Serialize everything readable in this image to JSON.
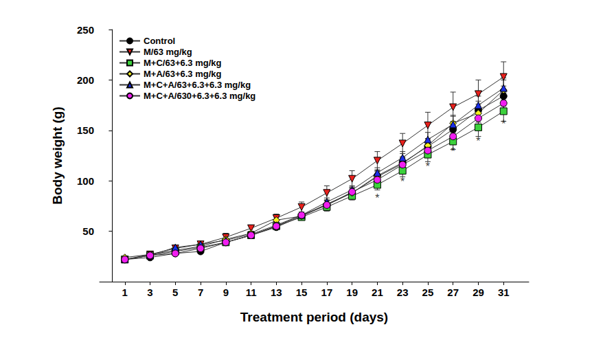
{
  "chart_data": {
    "type": "line",
    "x_label": "Treatment period (days)",
    "y_label": "Body weight (g)",
    "x": [
      1,
      3,
      5,
      7,
      9,
      11,
      13,
      15,
      17,
      19,
      21,
      23,
      25,
      27,
      29,
      31
    ],
    "xlim": [
      -1,
      33
    ],
    "xticks": [
      1,
      3,
      5,
      7,
      9,
      11,
      13,
      15,
      17,
      19,
      21,
      23,
      25,
      27,
      29,
      31
    ],
    "ylim": [
      0,
      250
    ],
    "yticks": [
      50,
      100,
      150,
      200,
      250
    ],
    "grid": false,
    "legend": "upper left",
    "series": [
      {
        "name": "Control",
        "color": "#000000",
        "marker": "circle",
        "values": [
          22,
          24,
          28,
          30,
          39,
          46,
          54,
          65,
          76,
          88,
          105,
          118,
          134,
          151,
          170,
          184
        ],
        "errors": [
          1,
          1,
          1,
          1,
          2,
          2,
          2,
          3,
          4,
          4,
          5,
          6,
          7,
          8,
          9,
          10
        ]
      },
      {
        "name": "M/63 mg/kg",
        "color": "#e8201c",
        "marker": "triangle-down",
        "values": [
          22,
          27,
          33,
          37,
          44,
          53,
          63,
          74,
          88,
          102,
          120,
          137,
          155,
          173,
          186,
          203
        ],
        "errors": [
          1,
          1,
          2,
          2,
          3,
          3,
          4,
          5,
          7,
          8,
          9,
          10,
          13,
          15,
          14,
          15
        ]
      },
      {
        "name": "M+C/63+6.3 mg/kg",
        "color": "#3cd13c",
        "marker": "square",
        "values": [
          22,
          26,
          30,
          34,
          39,
          46,
          55,
          64,
          74,
          85,
          96,
          110,
          126,
          139,
          153,
          169
        ],
        "errors": [
          1,
          1,
          1,
          1,
          2,
          2,
          2,
          3,
          4,
          4,
          5,
          6,
          7,
          8,
          9,
          10
        ]
      },
      {
        "name": "M+A/63+6.3 mg/kg",
        "color": "#f5f01e",
        "marker": "diamond",
        "values": [
          24,
          27,
          31,
          35,
          42,
          48,
          61,
          65,
          77,
          88,
          104,
          117,
          135,
          157,
          167,
          190
        ],
        "errors": [
          1,
          1,
          2,
          2,
          6,
          2,
          3,
          3,
          4,
          5,
          5,
          6,
          7,
          8,
          9,
          10
        ]
      },
      {
        "name": "M+C+A/63+6.3+6.3 mg/kg",
        "color": "#1a2ee8",
        "marker": "triangle",
        "values": [
          22,
          26,
          34,
          37,
          41,
          47,
          56,
          66,
          79,
          91,
          108,
          123,
          141,
          156,
          175,
          192
        ],
        "errors": [
          1,
          1,
          2,
          2,
          2,
          2,
          3,
          3,
          4,
          4,
          5,
          6,
          7,
          8,
          9,
          10
        ]
      },
      {
        "name": "M+C+A/630+6.3+6.3 mg/kg",
        "color": "#f01ef0",
        "marker": "circle",
        "values": [
          22,
          26,
          28,
          33,
          39,
          46,
          55,
          66,
          76,
          89,
          101,
          116,
          130,
          144,
          162,
          177
        ],
        "errors": [
          1,
          1,
          1,
          1,
          2,
          2,
          2,
          3,
          4,
          4,
          5,
          6,
          7,
          8,
          9,
          10
        ]
      }
    ],
    "annotations": [
      {
        "x": 21,
        "y": 83,
        "text": "*"
      },
      {
        "x": 23,
        "y": 99,
        "text": "*"
      },
      {
        "x": 25,
        "y": 114,
        "text": "*"
      },
      {
        "x": 27,
        "y": 129,
        "text": "*"
      },
      {
        "x": 29,
        "y": 139,
        "text": "*"
      },
      {
        "x": 31,
        "y": 156,
        "text": "*"
      }
    ]
  }
}
